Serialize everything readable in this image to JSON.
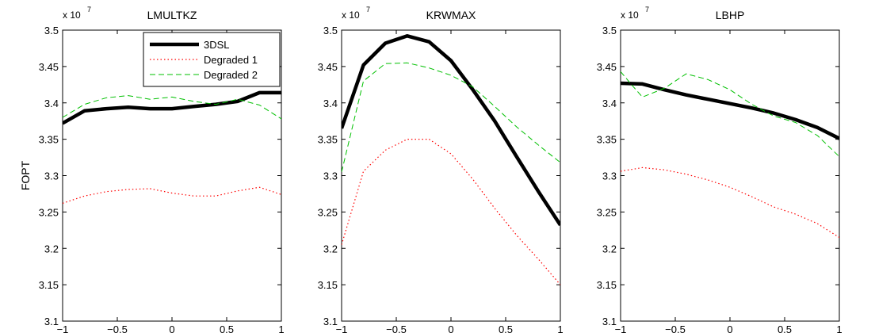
{
  "chart_data": [
    {
      "type": "line",
      "title": "LMULTKZ",
      "ylabel": "FOPT",
      "xlabel": "",
      "xlim": [
        -1,
        1
      ],
      "ylim": [
        3.1,
        3.5
      ],
      "y_multiplier": "x 10",
      "y_exponent": "7",
      "xticks": [
        "−1",
        "−0.5",
        "0",
        "0.5",
        "1"
      ],
      "yticks": [
        "3.1",
        "3.15",
        "3.2",
        "3.25",
        "3.3",
        "3.35",
        "3.4",
        "3.45",
        "3.5"
      ],
      "legend": {
        "position": "top-right",
        "entries": [
          "3DSL",
          "Degraded 1",
          "Degraded 2"
        ]
      },
      "series": [
        {
          "name": "3DSL",
          "color": "#000000",
          "style": "solid",
          "x": [
            -1,
            -0.8,
            -0.6,
            -0.4,
            -0.2,
            0,
            0.2,
            0.4,
            0.6,
            0.8,
            1
          ],
          "y": [
            3.372,
            3.389,
            3.392,
            3.394,
            3.392,
            3.392,
            3.395,
            3.398,
            3.402,
            3.414,
            3.414
          ]
        },
        {
          "name": "Degraded 1",
          "color": "#ff0000",
          "style": "dotted",
          "x": [
            -1,
            -0.8,
            -0.6,
            -0.4,
            -0.2,
            0,
            0.2,
            0.4,
            0.6,
            0.8,
            1
          ],
          "y": [
            3.262,
            3.272,
            3.278,
            3.281,
            3.282,
            3.276,
            3.272,
            3.272,
            3.279,
            3.284,
            3.274
          ]
        },
        {
          "name": "Degraded 2",
          "color": "#00c000",
          "style": "dashed",
          "x": [
            -1,
            -0.8,
            -0.6,
            -0.4,
            -0.2,
            0,
            0.2,
            0.4,
            0.6,
            0.8,
            1
          ],
          "y": [
            3.38,
            3.398,
            3.407,
            3.41,
            3.405,
            3.408,
            3.402,
            3.398,
            3.405,
            3.397,
            3.378
          ]
        }
      ]
    },
    {
      "type": "line",
      "title": "KRWMAX",
      "ylabel": "",
      "xlabel": "",
      "xlim": [
        -1,
        1
      ],
      "ylim": [
        3.1,
        3.5
      ],
      "y_multiplier": "x 10",
      "y_exponent": "7",
      "xticks": [
        "−1",
        "−0.5",
        "0",
        "0.5",
        "1"
      ],
      "yticks": [
        "3.1",
        "3.15",
        "3.2",
        "3.25",
        "3.3",
        "3.35",
        "3.4",
        "3.45",
        "3.5"
      ],
      "series": [
        {
          "name": "3DSL",
          "color": "#000000",
          "style": "solid",
          "x": [
            -1,
            -0.8,
            -0.6,
            -0.4,
            -0.2,
            0,
            0.2,
            0.4,
            0.6,
            0.8,
            1
          ],
          "y": [
            3.365,
            3.452,
            3.482,
            3.492,
            3.484,
            3.458,
            3.418,
            3.375,
            3.326,
            3.278,
            3.232
          ]
        },
        {
          "name": "Degraded 1",
          "color": "#ff0000",
          "style": "dotted",
          "x": [
            -1,
            -0.8,
            -0.6,
            -0.4,
            -0.2,
            0,
            0.2,
            0.4,
            0.6,
            0.8,
            1
          ],
          "y": [
            3.205,
            3.306,
            3.335,
            3.35,
            3.35,
            3.33,
            3.295,
            3.255,
            3.218,
            3.185,
            3.15
          ]
        },
        {
          "name": "Degraded 2",
          "color": "#00c000",
          "style": "dashed",
          "x": [
            -1,
            -0.8,
            -0.6,
            -0.4,
            -0.2,
            0,
            0.2,
            0.4,
            0.6,
            0.8,
            1
          ],
          "y": [
            3.305,
            3.43,
            3.454,
            3.455,
            3.448,
            3.438,
            3.422,
            3.395,
            3.367,
            3.342,
            3.318
          ]
        }
      ]
    },
    {
      "type": "line",
      "title": "LBHP",
      "ylabel": "",
      "xlabel": "",
      "xlim": [
        -1,
        1
      ],
      "ylim": [
        3.1,
        3.5
      ],
      "y_multiplier": "x 10",
      "y_exponent": "7",
      "xticks": [
        "−1",
        "−0.5",
        "0",
        "0.5",
        "1"
      ],
      "yticks": [
        "3.1",
        "3.15",
        "3.2",
        "3.25",
        "3.3",
        "3.35",
        "3.4",
        "3.45",
        "3.5"
      ],
      "series": [
        {
          "name": "3DSL",
          "color": "#000000",
          "style": "solid",
          "x": [
            -1,
            -0.8,
            -0.6,
            -0.4,
            -0.2,
            0,
            0.2,
            0.4,
            0.6,
            0.8,
            1
          ],
          "y": [
            3.427,
            3.426,
            3.418,
            3.411,
            3.405,
            3.399,
            3.393,
            3.386,
            3.377,
            3.366,
            3.351
          ]
        },
        {
          "name": "Degraded 1",
          "color": "#ff0000",
          "style": "dotted",
          "x": [
            -1,
            -0.8,
            -0.6,
            -0.4,
            -0.2,
            0,
            0.2,
            0.4,
            0.6,
            0.8,
            1
          ],
          "y": [
            3.306,
            3.311,
            3.308,
            3.302,
            3.294,
            3.284,
            3.271,
            3.257,
            3.247,
            3.234,
            3.215
          ]
        },
        {
          "name": "Degraded 2",
          "color": "#00c000",
          "style": "dashed",
          "x": [
            -1,
            -0.9,
            -0.8,
            -0.6,
            -0.4,
            -0.2,
            0,
            0.2,
            0.4,
            0.6,
            0.8,
            1
          ],
          "y": [
            3.443,
            3.425,
            3.408,
            3.42,
            3.44,
            3.432,
            3.418,
            3.398,
            3.382,
            3.373,
            3.355,
            3.326
          ]
        }
      ]
    }
  ]
}
